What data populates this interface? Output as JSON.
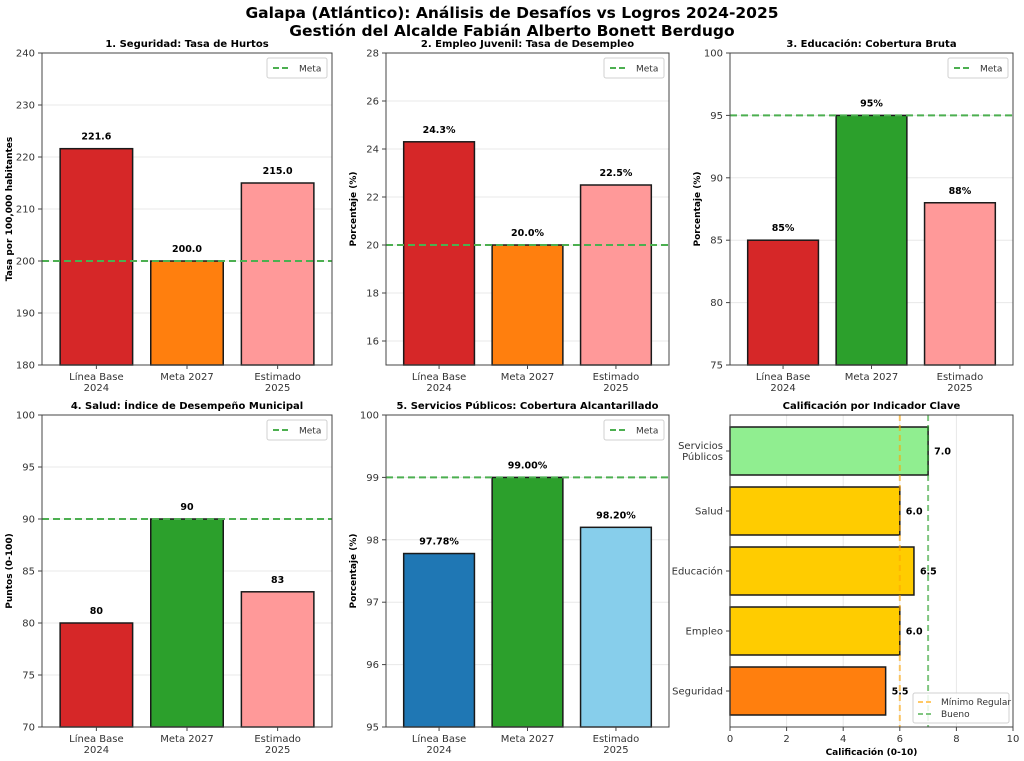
{
  "figure": {
    "title_line1": "Galapa (Atlántico): Análisis de Desafíos vs Logros 2024-2025",
    "title_line2": "Gestión del Alcalde Fabián Alberto Bonett Berdugo"
  },
  "chart_data": [
    {
      "type": "bar",
      "title": "1. Seguridad: Tasa de Hurtos",
      "xlabel": "",
      "ylabel": "Tasa por 100,000 habitantes",
      "categories": [
        "Línea Base\n2024",
        "Meta 2027",
        "Estimado\n2025"
      ],
      "values": [
        221.6,
        200.0,
        215.0
      ],
      "value_labels": [
        "221.6",
        "200.0",
        "215.0"
      ],
      "colors": [
        "#d62728",
        "#ff7f0e",
        "#ff9999"
      ],
      "ylim": [
        180,
        240
      ],
      "yticks": [
        180,
        190,
        200,
        210,
        220,
        230,
        240
      ],
      "meta_line": 200,
      "legend": [
        "Meta"
      ],
      "legend_position": "top-right",
      "grid": "y"
    },
    {
      "type": "bar",
      "title": "2. Empleo Juvenil: Tasa de Desempleo",
      "xlabel": "",
      "ylabel": "Porcentaje (%)",
      "categories": [
        "Línea Base\n2024",
        "Meta 2027",
        "Estimado\n2025"
      ],
      "values": [
        24.3,
        20.0,
        22.5
      ],
      "value_labels": [
        "24.3%",
        "20.0%",
        "22.5%"
      ],
      "colors": [
        "#d62728",
        "#ff7f0e",
        "#ff9999"
      ],
      "ylim": [
        15,
        28
      ],
      "yticks": [
        16,
        18,
        20,
        22,
        24,
        26,
        28
      ],
      "meta_line": 20,
      "legend": [
        "Meta"
      ],
      "legend_position": "top-right",
      "grid": "y"
    },
    {
      "type": "bar",
      "title": "3. Educación: Cobertura Bruta",
      "xlabel": "",
      "ylabel": "Porcentaje (%)",
      "categories": [
        "Línea Base\n2024",
        "Meta 2027",
        "Estimado\n2025"
      ],
      "values": [
        85,
        95,
        88
      ],
      "value_labels": [
        "85%",
        "95%",
        "88%"
      ],
      "colors": [
        "#d62728",
        "#2ca02c",
        "#ff9999"
      ],
      "ylim": [
        75,
        100
      ],
      "yticks": [
        75,
        80,
        85,
        90,
        95,
        100
      ],
      "meta_line": 95,
      "legend": [
        "Meta"
      ],
      "legend_position": "top-right",
      "grid": "y"
    },
    {
      "type": "bar",
      "title": "4. Salud: Índice de Desempeño Municipal",
      "xlabel": "",
      "ylabel": "Puntos (0-100)",
      "categories": [
        "Línea Base\n2024",
        "Meta 2027",
        "Estimado\n2025"
      ],
      "values": [
        80,
        90,
        83
      ],
      "value_labels": [
        "80",
        "90",
        "83"
      ],
      "colors": [
        "#d62728",
        "#2ca02c",
        "#ff9999"
      ],
      "ylim": [
        70,
        100
      ],
      "yticks": [
        70,
        75,
        80,
        85,
        90,
        95,
        100
      ],
      "meta_line": 90,
      "legend": [
        "Meta"
      ],
      "legend_position": "top-right",
      "grid": "y"
    },
    {
      "type": "bar",
      "title": "5. Servicios Públicos: Cobertura Alcantarillado",
      "xlabel": "",
      "ylabel": "Porcentaje (%)",
      "categories": [
        "Línea Base\n2024",
        "Meta 2027",
        "Estimado\n2025"
      ],
      "values": [
        97.78,
        99.0,
        98.2
      ],
      "value_labels": [
        "97.78%",
        "99.00%",
        "98.20%"
      ],
      "colors": [
        "#1f77b4",
        "#2ca02c",
        "#87ceeb"
      ],
      "ylim": [
        95,
        100
      ],
      "yticks": [
        95,
        96,
        97,
        98,
        99,
        100
      ],
      "meta_line": 99,
      "legend": [
        "Meta"
      ],
      "legend_position": "top-right",
      "grid": "y"
    },
    {
      "type": "bar",
      "orientation": "horizontal",
      "title": "Calificación por Indicador Clave",
      "xlabel": "Calificación (0-10)",
      "ylabel": "",
      "categories": [
        "Seguridad",
        "Empleo",
        "Educación",
        "Salud",
        "Servicios\nPúblicos"
      ],
      "values": [
        5.5,
        6.0,
        6.5,
        6.0,
        7.0
      ],
      "value_labels": [
        "5.5",
        "6.0",
        "6.5",
        "6.0",
        "7.0"
      ],
      "colors": [
        "#ff7f0e",
        "#ffcc00",
        "#ffcc00",
        "#ffcc00",
        "#90ee90"
      ],
      "xlim": [
        0,
        10
      ],
      "xticks": [
        0,
        2,
        4,
        6,
        8,
        10
      ],
      "reference_lines": [
        {
          "name": "Mínimo Regular",
          "value": 6,
          "color": "#ffa500"
        },
        {
          "name": "Bueno",
          "value": 7,
          "color": "#2ca02c"
        }
      ],
      "legend": [
        "Mínimo Regular",
        "Bueno"
      ],
      "legend_position": "bottom-right",
      "grid": "x"
    }
  ]
}
